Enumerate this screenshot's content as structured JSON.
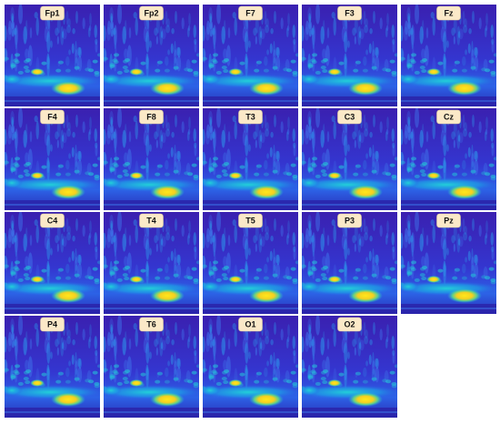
{
  "panels": [
    {
      "label": "Fp1"
    },
    {
      "label": "Fp2"
    },
    {
      "label": "F7"
    },
    {
      "label": "F3"
    },
    {
      "label": "Fz"
    },
    {
      "label": "F4"
    },
    {
      "label": "F8"
    },
    {
      "label": "T3"
    },
    {
      "label": "C3"
    },
    {
      "label": "Cz"
    },
    {
      "label": "C4"
    },
    {
      "label": "T4"
    },
    {
      "label": "T5"
    },
    {
      "label": "P3"
    },
    {
      "label": "Pz"
    },
    {
      "label": "P4"
    },
    {
      "label": "T6"
    },
    {
      "label": "O1"
    },
    {
      "label": "O2"
    }
  ]
}
